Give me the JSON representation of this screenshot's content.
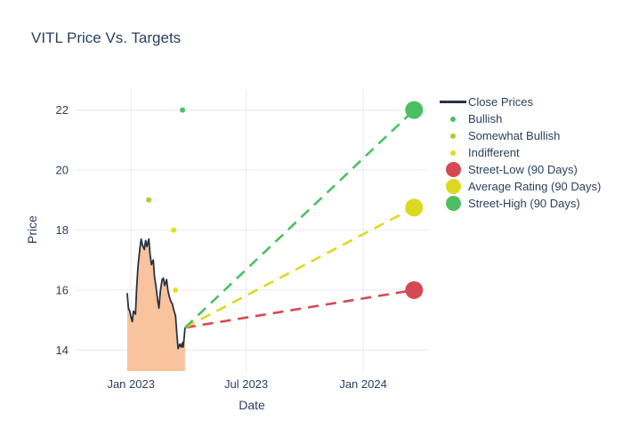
{
  "title": "VITL Price Vs. Targets",
  "colors": {
    "close_line": "#263247",
    "close_fill": "#f9c49d",
    "bullish": "#4dbf63",
    "somewhat_bullish": "#a9ce39",
    "indifferent": "#e2de21",
    "street_low": "#d64952",
    "average_rating": "#ddd921",
    "street_high": "#4dbf63",
    "grid": "#e9edf5",
    "text": "#2a3f5f"
  },
  "legend": {
    "items": [
      {
        "label": "Close Prices",
        "symbol": "line",
        "color": "#263247"
      },
      {
        "label": "Bullish",
        "symbol": "dot",
        "color": "#4dbf63"
      },
      {
        "label": "Somewhat Bullish",
        "symbol": "dot",
        "color": "#a9ce39"
      },
      {
        "label": "Indifferent",
        "symbol": "dot",
        "color": "#e2de21"
      },
      {
        "label": "Street-Low (90 Days)",
        "symbol": "big-dot",
        "color": "#d64952"
      },
      {
        "label": "Average Rating (90 Days)",
        "symbol": "big-dot",
        "color": "#ddd921"
      },
      {
        "label": "Street-High (90 Days)",
        "symbol": "big-dot",
        "color": "#4dbf63"
      }
    ]
  },
  "chart_data": {
    "type": "line",
    "title": "VITL Price Vs. Targets",
    "xlabel": "Date",
    "ylabel": "Price",
    "grid": true,
    "legend_position": "right",
    "xaxis": {
      "range": [
        "2022-10-06",
        "2024-04-12"
      ],
      "ticks": [
        {
          "value": "2023-01-01",
          "label": "Jan 2023"
        },
        {
          "value": "2023-07-01",
          "label": "Jul 2023"
        },
        {
          "value": "2024-01-01",
          "label": "Jan 2024"
        }
      ]
    },
    "yaxis": {
      "range": [
        13.3,
        22.7
      ],
      "ticks": [
        14,
        16,
        18,
        20,
        22
      ]
    },
    "close_prices": {
      "name": "Close Prices",
      "dates": [
        "2022-12-26",
        "2022-12-28",
        "2022-12-30",
        "2023-01-01",
        "2023-01-03",
        "2023-01-05",
        "2023-01-08",
        "2023-01-10",
        "2023-01-12",
        "2023-01-15",
        "2023-01-17",
        "2023-01-19",
        "2023-01-22",
        "2023-01-24",
        "2023-01-26",
        "2023-01-29",
        "2023-01-31",
        "2023-02-02",
        "2023-02-05",
        "2023-02-07",
        "2023-02-09",
        "2023-02-12",
        "2023-02-14",
        "2023-02-16",
        "2023-02-19",
        "2023-02-21",
        "2023-02-23",
        "2023-02-26",
        "2023-02-28",
        "2023-03-02",
        "2023-03-05",
        "2023-03-07",
        "2023-03-09",
        "2023-03-12",
        "2023-03-14",
        "2023-03-16",
        "2023-03-19",
        "2023-03-21",
        "2023-03-23",
        "2023-03-24",
        "2023-03-26",
        "2023-03-27"
      ],
      "values": [
        15.9,
        15.4,
        15.3,
        15.1,
        14.95,
        15.3,
        15.2,
        16.1,
        16.8,
        17.4,
        17.7,
        17.5,
        17.35,
        17.65,
        17.45,
        17.7,
        17.2,
        16.85,
        17.0,
        16.45,
        16.15,
        15.65,
        15.4,
        15.95,
        16.35,
        16.4,
        16.15,
        16.35,
        16.0,
        15.8,
        15.6,
        15.55,
        15.35,
        15.15,
        14.55,
        14.05,
        14.2,
        14.1,
        14.25,
        14.1,
        14.5,
        14.75
      ]
    },
    "ratings": [
      {
        "name": "Bullish",
        "color": "#4dbf63",
        "points": [
          {
            "date": "2023-03-23",
            "price": 22
          }
        ]
      },
      {
        "name": "Somewhat Bullish",
        "color": "#a9ce39",
        "points": [
          {
            "date": "2023-01-29",
            "price": 19
          }
        ]
      },
      {
        "name": "Indifferent",
        "color": "#e2de21",
        "points": [
          {
            "date": "2023-03-09",
            "price": 18
          },
          {
            "date": "2023-03-12",
            "price": 16
          }
        ]
      }
    ],
    "target_line_origin": {
      "date": "2023-03-27",
      "price": 14.75
    },
    "targets": [
      {
        "name": "Street-Low (90 Days)",
        "date": "2024-03-21",
        "price": 16,
        "color": "#d64952"
      },
      {
        "name": "Average Rating (90 Days)",
        "date": "2024-03-21",
        "price": 18.75,
        "color": "#ddd921"
      },
      {
        "name": "Street-High (90 Days)",
        "date": "2024-03-21",
        "price": 22,
        "color": "#4dbf63"
      }
    ]
  }
}
